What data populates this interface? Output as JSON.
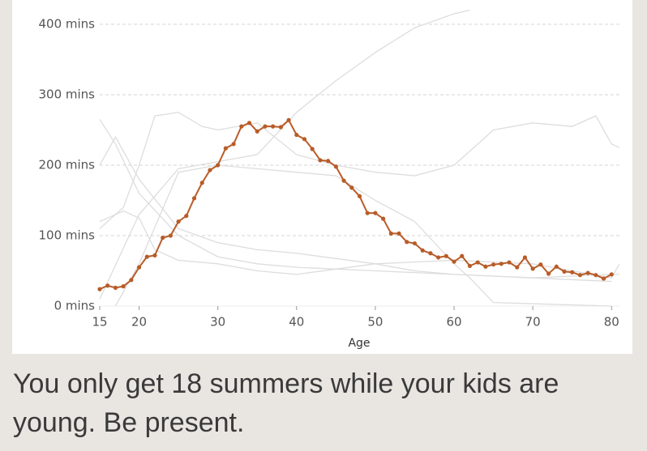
{
  "chart_data": {
    "type": "line",
    "x_label": "Age",
    "xlim": [
      15,
      81
    ],
    "xticks": [
      15,
      20,
      30,
      40,
      50,
      60,
      70,
      80
    ],
    "ylim": [
      0,
      420
    ],
    "yticks": [
      {
        "value": 0,
        "label": "0 mins"
      },
      {
        "value": 100,
        "label": "100 mins"
      },
      {
        "value": 200,
        "label": "200 mins"
      },
      {
        "value": 300,
        "label": "300 mins"
      },
      {
        "value": 400,
        "label": "400 mins"
      }
    ],
    "grid": true,
    "series": [
      {
        "color": "#dddddd",
        "x": [
          15,
          20,
          25,
          30,
          35,
          40,
          45,
          50,
          55,
          60,
          62
        ],
        "values": [
          10,
          130,
          195,
          205,
          215,
          275,
          320,
          360,
          395,
          415,
          420
        ]
      },
      {
        "color": "#dddddd",
        "x": [
          15,
          17,
          20,
          25,
          30,
          35,
          40,
          50,
          60,
          70,
          80
        ],
        "values": [
          265,
          230,
          160,
          100,
          70,
          60,
          55,
          50,
          45,
          40,
          35
        ]
      },
      {
        "color": "#dddddd",
        "x": [
          15,
          18,
          20,
          22,
          25,
          28,
          30,
          35,
          40,
          45,
          50,
          55,
          60,
          65,
          70,
          75,
          78,
          80,
          81
        ],
        "values": [
          110,
          140,
          200,
          270,
          275,
          255,
          250,
          260,
          215,
          200,
          190,
          185,
          200,
          250,
          260,
          255,
          270,
          230,
          225
        ]
      },
      {
        "color": "#dddddd",
        "x": [
          15,
          17,
          20,
          25,
          30,
          35,
          40,
          50,
          55,
          60,
          70,
          80,
          81
        ],
        "values": [
          200,
          240,
          180,
          110,
          90,
          80,
          75,
          60,
          50,
          45,
          40,
          45,
          45
        ]
      },
      {
        "color": "#dddddd",
        "x": [
          17,
          20,
          25,
          30,
          35,
          40,
          45,
          50,
          55,
          60,
          62,
          65,
          80
        ],
        "values": [
          0,
          60,
          190,
          200,
          195,
          190,
          185,
          150,
          120,
          60,
          40,
          5,
          0
        ]
      },
      {
        "color": "#dddddd",
        "x": [
          15,
          18,
          20,
          22,
          25,
          30,
          35,
          40,
          50,
          60,
          70,
          75,
          80,
          81
        ],
        "values": [
          120,
          135,
          125,
          80,
          65,
          60,
          50,
          45,
          60,
          65,
          60,
          50,
          40,
          60
        ]
      },
      {
        "color": "#b85c28",
        "markers": true,
        "x": [
          15,
          16,
          17,
          18,
          19,
          20,
          21,
          22,
          23,
          24,
          25,
          26,
          27,
          28,
          29,
          30,
          31,
          32,
          33,
          34,
          35,
          36,
          37,
          38,
          39,
          40,
          41,
          42,
          43,
          44,
          45,
          46,
          47,
          48,
          49,
          50,
          51,
          52,
          53,
          54,
          55,
          56,
          57,
          58,
          59,
          60,
          61,
          62,
          63,
          64,
          65,
          66,
          67,
          68,
          69,
          70,
          71,
          72,
          73,
          74,
          75,
          76,
          77,
          78,
          79,
          80
        ],
        "values": [
          24,
          29,
          26,
          28,
          37,
          55,
          70,
          72,
          97,
          100,
          120,
          128,
          153,
          175,
          193,
          200,
          224,
          230,
          255,
          260,
          248,
          255,
          255,
          254,
          264,
          243,
          237,
          223,
          207,
          206,
          198,
          178,
          168,
          156,
          132,
          132,
          124,
          103,
          103,
          91,
          89,
          79,
          75,
          69,
          71,
          63,
          71,
          57,
          62,
          56,
          59,
          60,
          62,
          55,
          69,
          53,
          59,
          46,
          56,
          49,
          48,
          44,
          47,
          44,
          39,
          45
        ]
      }
    ]
  },
  "caption": "You only get 18 summers while your kids are young. Be present."
}
